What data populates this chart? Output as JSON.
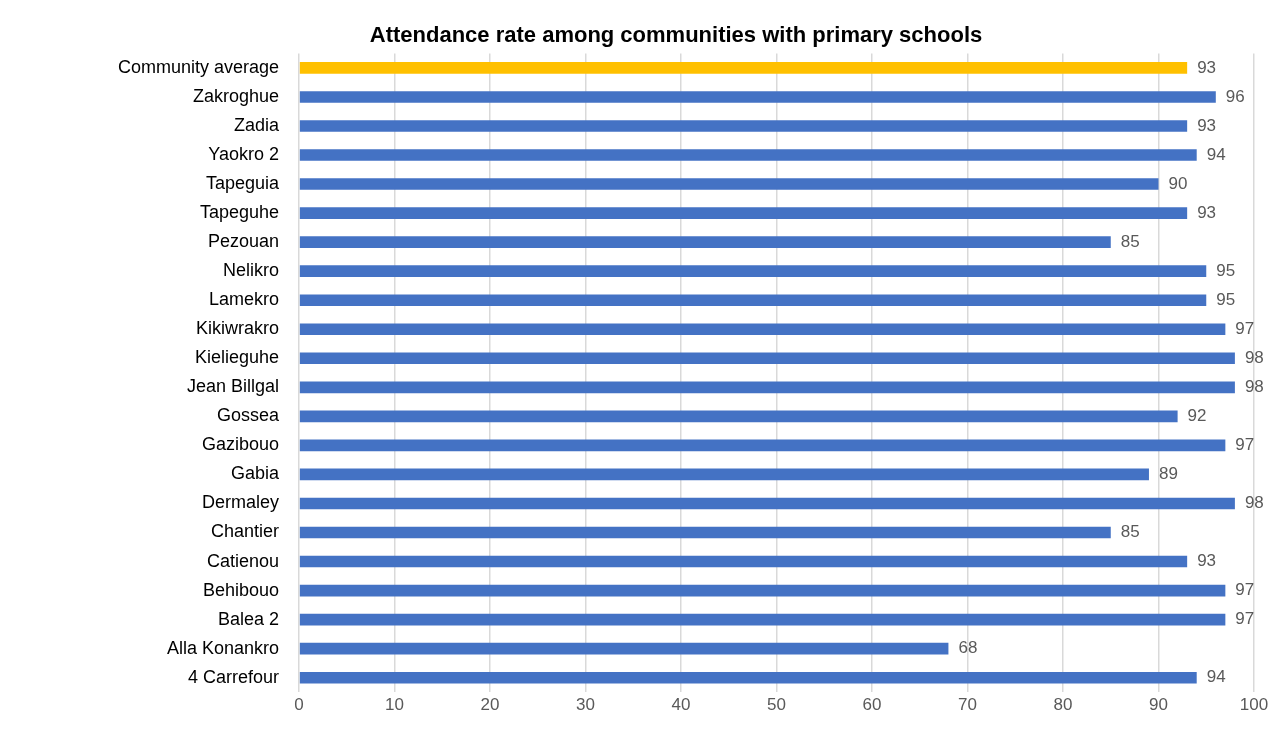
{
  "chart_data": {
    "type": "bar",
    "orientation": "horizontal",
    "title": "Attendance rate among communities with primary schools",
    "categories": [
      "Community average",
      "Zakroghue",
      "Zadia",
      "Yaokro 2",
      "Tapeguia",
      "Tapeguhe",
      "Pezouan",
      "Nelikro",
      "Lamekro",
      "Kikiwrakro",
      "Kielieguhe",
      "Jean Billgal",
      "Gossea",
      "Gazibouo",
      "Gabia",
      "Dermaley",
      "Chantier",
      "Catienou",
      "Behibouo",
      "Balea 2",
      "Alla Konankro",
      "4 Carrefour"
    ],
    "values": [
      93,
      96,
      93,
      94,
      90,
      93,
      85,
      95,
      95,
      97,
      98,
      98,
      92,
      97,
      89,
      98,
      85,
      93,
      97,
      97,
      68,
      94
    ],
    "colors": [
      "#ffc000",
      "#4472c4",
      "#4472c4",
      "#4472c4",
      "#4472c4",
      "#4472c4",
      "#4472c4",
      "#4472c4",
      "#4472c4",
      "#4472c4",
      "#4472c4",
      "#4472c4",
      "#4472c4",
      "#4472c4",
      "#4472c4",
      "#4472c4",
      "#4472c4",
      "#4472c4",
      "#4472c4",
      "#4472c4",
      "#4472c4",
      "#4472c4"
    ],
    "xlim": [
      0,
      100
    ],
    "xticks": [
      0,
      10,
      20,
      30,
      40,
      50,
      60,
      70,
      80,
      90,
      100
    ],
    "grid": "x",
    "data_labels": true,
    "legend": false
  }
}
